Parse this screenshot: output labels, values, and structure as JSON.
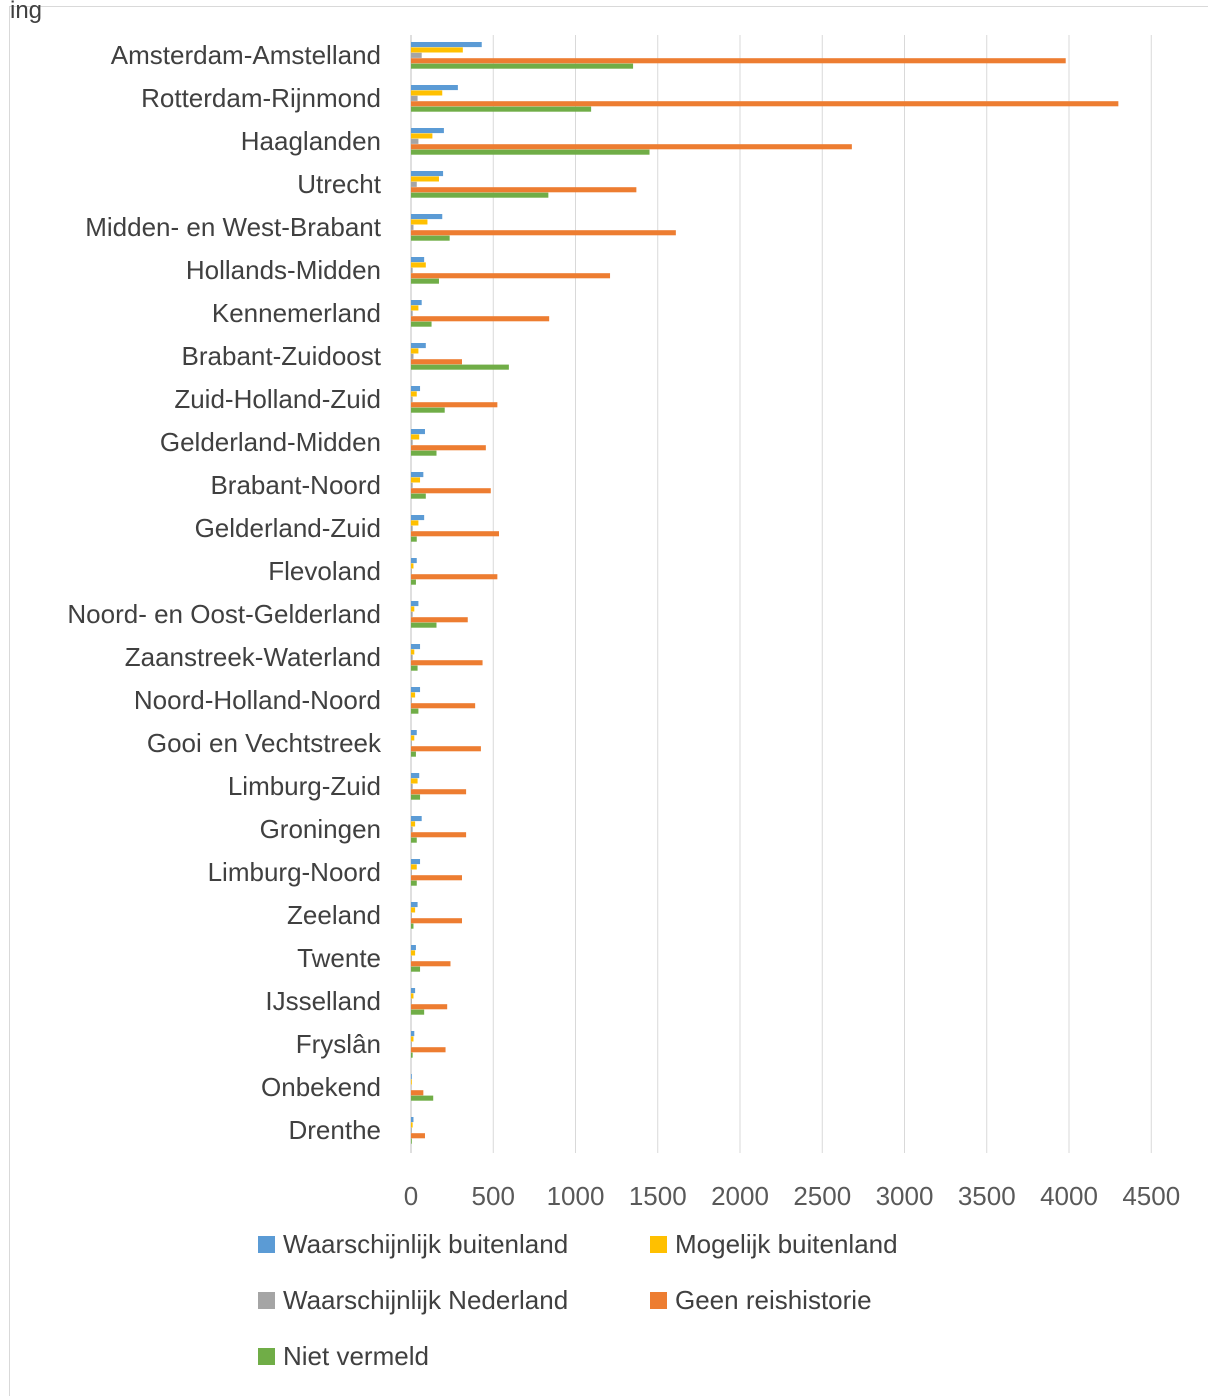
{
  "corner_text": "ing",
  "chart_data": {
    "type": "bar",
    "orientation": "horizontal",
    "categories": [
      "Amsterdam-Amstelland",
      "Rotterdam-Rijnmond",
      "Haaglanden",
      "Utrecht",
      "Midden- en West-Brabant",
      "Hollands-Midden",
      "Kennemerland",
      "Brabant-Zuidoost",
      "Zuid-Holland-Zuid",
      "Gelderland-Midden",
      "Brabant-Noord",
      "Gelderland-Zuid",
      "Flevoland",
      "Noord- en Oost-Gelderland",
      "Zaanstreek-Waterland",
      "Noord-Holland-Noord",
      "Gooi en Vechtstreek",
      "Limburg-Zuid",
      "Groningen",
      "Limburg-Noord",
      "Zeeland",
      "Twente",
      "IJsselland",
      "Fryslân",
      "Onbekend",
      "Drenthe"
    ],
    "series": [
      {
        "name": "Waarschijnlijk buitenland",
        "color": "#5b9bd5",
        "values": [
          430,
          285,
          200,
          195,
          190,
          80,
          65,
          90,
          55,
          85,
          75,
          80,
          35,
          45,
          55,
          55,
          35,
          50,
          65,
          55,
          40,
          30,
          25,
          20,
          5,
          15
        ]
      },
      {
        "name": "Mogelijk buitenland",
        "color": "#ffc000",
        "values": [
          315,
          190,
          130,
          170,
          100,
          90,
          45,
          45,
          35,
          50,
          55,
          45,
          15,
          20,
          20,
          25,
          20,
          40,
          25,
          35,
          25,
          25,
          15,
          15,
          5,
          10
        ]
      },
      {
        "name": "Waarschijnlijk Nederland",
        "color": "#a5a5a5",
        "values": [
          65,
          40,
          45,
          35,
          15,
          10,
          10,
          15,
          10,
          10,
          10,
          10,
          5,
          10,
          10,
          5,
          5,
          10,
          10,
          5,
          5,
          5,
          5,
          5,
          2,
          5
        ]
      },
      {
        "name": "Geen reishistorie",
        "color": "#ed7d31",
        "values": [
          3980,
          4300,
          2680,
          1370,
          1610,
          1210,
          840,
          310,
          525,
          455,
          485,
          535,
          525,
          345,
          435,
          390,
          425,
          335,
          335,
          310,
          310,
          240,
          220,
          210,
          75,
          85
        ]
      },
      {
        "name": "Niet vermeld",
        "color": "#70ad47",
        "values": [
          1350,
          1095,
          1450,
          835,
          235,
          170,
          125,
          595,
          205,
          155,
          90,
          35,
          30,
          155,
          40,
          45,
          30,
          55,
          35,
          35,
          15,
          55,
          80,
          10,
          135,
          5
        ]
      }
    ],
    "xlim": [
      0,
      4500
    ],
    "xticks": [
      "0",
      "500",
      "1000",
      "1500",
      "2000",
      "2500",
      "3000",
      "3500",
      "4000",
      "4500"
    ],
    "grid": true,
    "legend_position": "bottom"
  }
}
